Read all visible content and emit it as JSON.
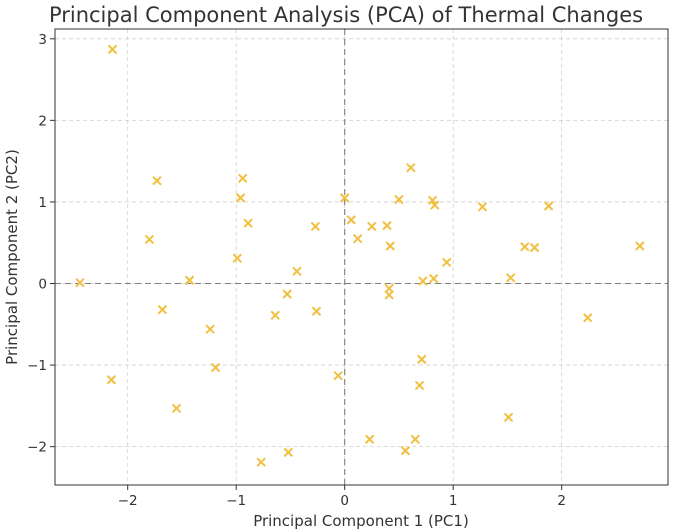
{
  "chart_data": {
    "type": "scatter",
    "title": "Principal Component Analysis (PCA) of Thermal Changes",
    "xlabel": "Principal Component 1 (PC1)",
    "ylabel": "Principal Component 2 (PC2)",
    "xlim": [
      -2.67,
      2.98
    ],
    "ylim": [
      -2.47,
      3.12
    ],
    "xticks": [
      -2,
      -1,
      0,
      1,
      2
    ],
    "yticks": [
      -2,
      -1,
      0,
      1,
      2,
      3
    ],
    "tick_labels_x": [
      "−2",
      "−1",
      "0",
      "1",
      "2"
    ],
    "tick_labels_y": [
      "−2",
      "−1",
      "0",
      "1",
      "2",
      "3"
    ],
    "grid": true,
    "zero_lines": true,
    "marker": "x",
    "color": "#f0c040",
    "points": [
      [
        -2.14,
        2.87
      ],
      [
        -1.73,
        1.26
      ],
      [
        -1.8,
        0.54
      ],
      [
        -2.44,
        0.01
      ],
      [
        -2.15,
        -1.18
      ],
      [
        -1.68,
        -0.32
      ],
      [
        -1.43,
        0.04
      ],
      [
        -1.55,
        -1.53
      ],
      [
        -1.24,
        -0.56
      ],
      [
        -1.19,
        -1.03
      ],
      [
        -0.94,
        1.29
      ],
      [
        -0.96,
        1.05
      ],
      [
        -0.89,
        0.74
      ],
      [
        -0.99,
        0.31
      ],
      [
        -0.44,
        0.15
      ],
      [
        -0.53,
        -0.13
      ],
      [
        -0.64,
        -0.39
      ],
      [
        -0.27,
        0.7
      ],
      [
        -0.26,
        -0.34
      ],
      [
        -0.77,
        -2.19
      ],
      [
        -0.52,
        -2.07
      ],
      [
        -0.06,
        -1.13
      ],
      [
        0.0,
        1.05
      ],
      [
        0.06,
        0.78
      ],
      [
        0.12,
        0.55
      ],
      [
        0.25,
        0.7
      ],
      [
        0.39,
        0.71
      ],
      [
        0.42,
        0.46
      ],
      [
        0.5,
        1.03
      ],
      [
        0.61,
        1.42
      ],
      [
        0.41,
        -0.06
      ],
      [
        0.41,
        -0.14
      ],
      [
        0.72,
        0.03
      ],
      [
        0.82,
        0.06
      ],
      [
        0.81,
        1.02
      ],
      [
        0.83,
        0.96
      ],
      [
        0.94,
        0.26
      ],
      [
        0.71,
        -0.93
      ],
      [
        0.69,
        -1.25
      ],
      [
        0.65,
        -1.91
      ],
      [
        0.56,
        -2.05
      ],
      [
        0.23,
        -1.91
      ],
      [
        1.27,
        0.94
      ],
      [
        1.53,
        0.07
      ],
      [
        1.66,
        0.45
      ],
      [
        1.75,
        0.44
      ],
      [
        1.88,
        0.95
      ],
      [
        1.51,
        -1.64
      ],
      [
        2.24,
        -0.42
      ],
      [
        2.72,
        0.46
      ]
    ]
  }
}
